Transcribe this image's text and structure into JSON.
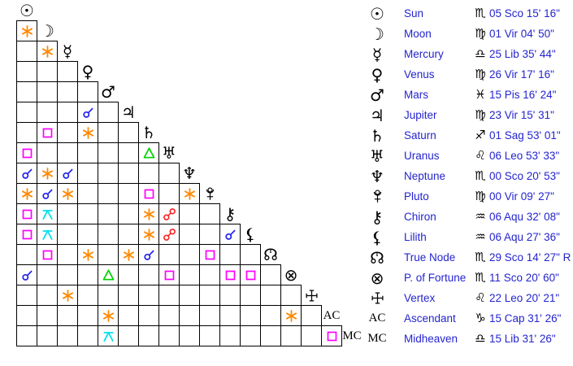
{
  "text_color": "#2424cf",
  "grid_line_color": "#000000",
  "background_color": "#ffffff",
  "aspect_colors": {
    "conjunction": "#2222ee",
    "sextile": "#ff8800",
    "square": "#ff00ff",
    "trine": "#00d400",
    "opposition": "#ff2222",
    "quincunx": "#00e0f0"
  },
  "points": [
    {
      "name": "Sun",
      "glyph": "☉",
      "sign_glyph": "♏",
      "position": "05 Sco 15' 16\""
    },
    {
      "name": "Moon",
      "glyph": "☽",
      "sign_glyph": "♍",
      "position": "01 Vir 04' 50\""
    },
    {
      "name": "Mercury",
      "glyph": "☿",
      "sign_glyph": "♎",
      "position": "25 Lib 35' 44\""
    },
    {
      "name": "Venus",
      "glyph": "♀",
      "sign_glyph": "♍",
      "position": "26 Vir 17' 16\""
    },
    {
      "name": "Mars",
      "glyph": "♂",
      "sign_glyph": "♓",
      "position": "15 Pis 16' 24\""
    },
    {
      "name": "Jupiter",
      "glyph": "♃",
      "sign_glyph": "♍",
      "position": "23 Vir 15' 31\""
    },
    {
      "name": "Saturn",
      "glyph": "♄",
      "sign_glyph": "♐",
      "position": "01 Sag 53' 01\""
    },
    {
      "name": "Uranus",
      "glyph": "♅",
      "sign_glyph": "♌",
      "position": "06 Leo 53' 33\""
    },
    {
      "name": "Neptune",
      "glyph": "♆",
      "sign_glyph": "♏",
      "position": "00 Sco 20' 53\""
    },
    {
      "name": "Pluto",
      "glyph": "PLUTO",
      "sign_glyph": "♍",
      "position": "00 Vir 09' 27\""
    },
    {
      "name": "Chiron",
      "glyph": "⚷",
      "sign_glyph": "♒",
      "position": "06 Aqu 32' 08\""
    },
    {
      "name": "Lilith",
      "glyph": "⚸",
      "sign_glyph": "♒",
      "position": "06 Aqu 27' 36\""
    },
    {
      "name": "True Node",
      "glyph": "TRUENODE",
      "sign_glyph": "♏",
      "position": "29 Sco 14' 27\" R"
    },
    {
      "name": "P. of Fortune",
      "glyph": "⊗",
      "sign_glyph": "♏",
      "position": "11 Sco 20' 60\""
    },
    {
      "name": "Vertex",
      "glyph": "VERTEX",
      "sign_glyph": "♌",
      "position": "22 Leo 20' 21\""
    },
    {
      "name": "Ascendant",
      "glyph": "AC",
      "sign_glyph": "♑",
      "position": "15 Cap 31' 26\""
    },
    {
      "name": "Midheaven",
      "glyph": "MC",
      "sign_glyph": "♎",
      "position": "15 Lib 31' 26\""
    }
  ],
  "aspects": [
    {
      "a": "Moon",
      "b": "Sun",
      "type": "sextile"
    },
    {
      "a": "Mercury",
      "b": "Moon",
      "type": "sextile"
    },
    {
      "a": "Jupiter",
      "b": "Venus",
      "type": "conjunction"
    },
    {
      "a": "Saturn",
      "b": "Moon",
      "type": "square"
    },
    {
      "a": "Saturn",
      "b": "Venus",
      "type": "sextile"
    },
    {
      "a": "Uranus",
      "b": "Sun",
      "type": "square"
    },
    {
      "a": "Uranus",
      "b": "Saturn",
      "type": "trine"
    },
    {
      "a": "Neptune",
      "b": "Sun",
      "type": "conjunction"
    },
    {
      "a": "Neptune",
      "b": "Moon",
      "type": "sextile"
    },
    {
      "a": "Neptune",
      "b": "Mercury",
      "type": "conjunction"
    },
    {
      "a": "Pluto",
      "b": "Sun",
      "type": "sextile"
    },
    {
      "a": "Pluto",
      "b": "Moon",
      "type": "conjunction"
    },
    {
      "a": "Pluto",
      "b": "Mercury",
      "type": "sextile"
    },
    {
      "a": "Pluto",
      "b": "Saturn",
      "type": "square"
    },
    {
      "a": "Pluto",
      "b": "Neptune",
      "type": "sextile"
    },
    {
      "a": "Chiron",
      "b": "Sun",
      "type": "square"
    },
    {
      "a": "Chiron",
      "b": "Moon",
      "type": "quincunx"
    },
    {
      "a": "Chiron",
      "b": "Saturn",
      "type": "sextile"
    },
    {
      "a": "Chiron",
      "b": "Uranus",
      "type": "opposition"
    },
    {
      "a": "Lilith",
      "b": "Sun",
      "type": "square"
    },
    {
      "a": "Lilith",
      "b": "Moon",
      "type": "quincunx"
    },
    {
      "a": "Lilith",
      "b": "Saturn",
      "type": "sextile"
    },
    {
      "a": "Lilith",
      "b": "Uranus",
      "type": "opposition"
    },
    {
      "a": "Lilith",
      "b": "Chiron",
      "type": "conjunction"
    },
    {
      "a": "True Node",
      "b": "Moon",
      "type": "square"
    },
    {
      "a": "True Node",
      "b": "Venus",
      "type": "sextile"
    },
    {
      "a": "True Node",
      "b": "Jupiter",
      "type": "sextile"
    },
    {
      "a": "True Node",
      "b": "Saturn",
      "type": "conjunction"
    },
    {
      "a": "True Node",
      "b": "Pluto",
      "type": "square"
    },
    {
      "a": "P. of Fortune",
      "b": "Sun",
      "type": "conjunction"
    },
    {
      "a": "P. of Fortune",
      "b": "Mars",
      "type": "trine"
    },
    {
      "a": "P. of Fortune",
      "b": "Uranus",
      "type": "square"
    },
    {
      "a": "P. of Fortune",
      "b": "Chiron",
      "type": "square"
    },
    {
      "a": "P. of Fortune",
      "b": "Lilith",
      "type": "square"
    },
    {
      "a": "Vertex",
      "b": "Mercury",
      "type": "sextile"
    },
    {
      "a": "Ascendant",
      "b": "Mars",
      "type": "sextile"
    },
    {
      "a": "Ascendant",
      "b": "P. of Fortune",
      "type": "sextile"
    },
    {
      "a": "Midheaven",
      "b": "Mars",
      "type": "quincunx"
    },
    {
      "a": "Midheaven",
      "b": "Ascendant",
      "type": "square"
    }
  ]
}
